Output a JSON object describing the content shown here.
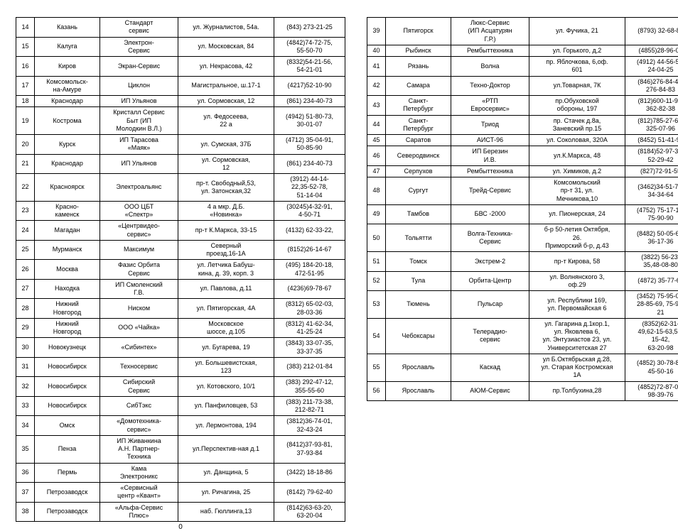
{
  "page_number": "0",
  "col_widths": {
    "c1": "26px",
    "c2": "92px",
    "c3": "110px",
    "c4": "135px",
    "c5": "100px"
  },
  "left": [
    {
      "n": "14",
      "city": "Казань",
      "org": "Стандарт\nсервис",
      "addr": "ул. Журналистов, 54а.",
      "tel": "(843) 273-21-25"
    },
    {
      "n": "15",
      "city": "Калуга",
      "org": "Электрон-\nСервис",
      "addr": "ул. Московская, 84",
      "tel": "(4842)74-72-75,\n55-50-70"
    },
    {
      "n": "16",
      "city": "Киров",
      "org": "Экран-Сервис",
      "addr": "ул. Некрасова, 42",
      "tel": "(8332)54-21-56,\n54-21-01"
    },
    {
      "n": "17",
      "city": "Комсомольск-\nна-Амуре",
      "org": "Циклон",
      "addr": "Магистральное, ш.17-1",
      "tel": "(4217)52-10-90"
    },
    {
      "n": "18",
      "city": "Краснодар",
      "org": "ИП Ульянов",
      "addr": "ул. Сормовская, 12",
      "tel": "(861) 234-40-73"
    },
    {
      "n": "19",
      "city": "Кострома",
      "org": "Кристалл Сервис\nБыт (ИП\nМолодкин В.Л.)",
      "addr": "ул. Федосеева,\n22 а",
      "tel": "(4942) 51-80-73,\n30-01-07"
    },
    {
      "n": "20",
      "city": "Курск",
      "org": "ИП Тарасова\n«Маяк»",
      "addr": "ул. Сумская, 37Б",
      "tel": "(4712) 35-04-91,\n50-85-90"
    },
    {
      "n": "21",
      "city": "Краснодар",
      "org": "ИП Ульянов",
      "addr": "ул. Сормовская,\n12",
      "tel": "(861) 234-40-73"
    },
    {
      "n": "22",
      "city": "Красноярск",
      "org": "Электроальянс",
      "addr": "пр-т. Свободный,53,\nул. Затонская,32",
      "tel": "(3912) 44-14-\n22,35-52-78,\n51-14-04"
    },
    {
      "n": "23",
      "city": "Красно-\nкаменск",
      "org": "ООО ЦБТ\n«Спектр»",
      "addr": "4 а мкр. Д.Б.\n«Новинка»",
      "tel": "(30245)4-32-91,\n4-50-71"
    },
    {
      "n": "24",
      "city": "Магадан",
      "org": "«Центрвидео-\nсервис»",
      "addr": "пр-т К.Маркса, 33-15",
      "tel": "(4132) 62-33-22,"
    },
    {
      "n": "25",
      "city": "Мурманск",
      "org": "Максимум",
      "addr": "Северный\nпроезд,16-1А",
      "tel": "(8152)26-14-67"
    },
    {
      "n": "26",
      "city": "Москва",
      "org": "Фазис Орбита\nСервис",
      "addr": "ул. Летчика Бабуш-\nкина, д. 39, корп. 3",
      "tel": "(495) 184-20-18,\n472-51-95"
    },
    {
      "n": "27",
      "city": "Находка",
      "org": "ИП Смоленский\nГ.В.",
      "addr": "ул. Павлова, д.11",
      "tel": "(4236)69-78-67"
    },
    {
      "n": "28",
      "city": "Нижний\nНовгород",
      "org": "Ниском",
      "addr": "ул. Пятигорская, 4А",
      "tel": "(8312) 65-02-03,\n28-03-36"
    },
    {
      "n": "29",
      "city": "Нижний\nНовгород",
      "org": "ООО «Чайка»",
      "addr": "Московское\nшоссе, д.105",
      "tel": "(8312) 41-62-34,\n41-25-24"
    },
    {
      "n": "30",
      "city": "Новокузнецк",
      "org": "«Сибинтех»",
      "addr": "ул. Бугарева, 19",
      "tel": "(3843) 33-07-35,\n33-37-35"
    },
    {
      "n": "31",
      "city": "Новосибирск",
      "org": "Техносервис",
      "addr": "ул. Большевистская,\n123",
      "tel": "(383) 212-01-84"
    },
    {
      "n": "32",
      "city": "Новосибирск",
      "org": "Сибирский\nСервис",
      "addr": "ул. Котовского, 10/1",
      "tel": "(383) 292-47-12,\n355-55-60"
    },
    {
      "n": "33",
      "city": "Новосибирск",
      "org": "СибТэкс",
      "addr": "ул. Панфиловцев, 53",
      "tel": "(383) 211-73-38,\n212-82-71"
    },
    {
      "n": "34",
      "city": "Омск",
      "org": "«Домотехника-\nсервис»",
      "addr": "ул. Лермонтова, 194",
      "tel": "(3812)36-74-01,\n32-43-24"
    },
    {
      "n": "35",
      "city": "Пенза",
      "org": "ИП Живанкина\nА.Н. Партнер-\nТехника",
      "addr": "ул.Перспектив-ная д.1",
      "tel": "(8412)37-93-81,\n37-93-84"
    },
    {
      "n": "36",
      "city": "Пермь",
      "org": "Кама\nЭлектроникс",
      "addr": "ул. Данщина, 5",
      "tel": "(3422) 18-18-86"
    },
    {
      "n": "37",
      "city": "Петрозаводск",
      "org": "«Сервисный\nцентр «Квант»",
      "addr": "ул. Ричагина, 25",
      "tel": "(8142) 79-62-40"
    },
    {
      "n": "38",
      "city": "Петрозаводск",
      "org": "«Альфа-Сервис\nПлюс»",
      "addr": "наб. Гюллинга,13",
      "tel": "(8142)63-63-20,\n63-20-04"
    }
  ],
  "right": [
    {
      "n": "39",
      "city": "Пятигорск",
      "org": "Люкс-Сервис\n(ИП Асцатурян\nГ.Р.)",
      "addr": "ул. Фучика, 21",
      "tel": "(8793) 32-68-80"
    },
    {
      "n": "40",
      "city": "Рыбинск",
      "org": "Рембыттехника",
      "addr": "ул. Горького, д,2",
      "tel": "(4855)28-96-08"
    },
    {
      "n": "41",
      "city": "Рязань",
      "org": "Волна",
      "addr": "пр. Яблочкова, 6,оф.\n601",
      "tel": "(4912) 44-56-51,\n24-04-25"
    },
    {
      "n": "42",
      "city": "Самара",
      "org": "Техно-Доктор",
      "addr": "ул.Товарная, 7К",
      "tel": "(846)276-84-48,\n276-84-83"
    },
    {
      "n": "43",
      "city": "Санкт-\nПетербург",
      "org": "«РТП\nЕвросервис»",
      "addr": "пр.Обуховской\nобороны, 197",
      "tel": "(812)600-11-97,\n362-82-38"
    },
    {
      "n": "44",
      "city": "Санкт-\nПетербург",
      "org": "Триод",
      "addr": "пр. Стачек д.8а,\nЗаневский пр.15",
      "tel": "(812)785-27-65,\n325-07-96"
    },
    {
      "n": "45",
      "city": "Саратов",
      "org": "АИСТ-96",
      "addr": "ул. Соколовая, 320А",
      "tel": "(8452) 51-41-99"
    },
    {
      "n": "46",
      "city": "Северодвинск",
      "org": "ИП Березин\nИ.В.",
      "addr": "ул.К.Маркса, 48",
      "tel": "(8184)52-97-30,\n52-29-42"
    },
    {
      "n": "47",
      "city": "Серпухов",
      "org": "Рембыттехника",
      "addr": "ул. Химиков, д.2",
      "tel": "(827)72-91-55"
    },
    {
      "n": "48",
      "city": "Сургут",
      "org": "Трейд-Сервис",
      "addr": "Комсомольский\nпр-т 31, ул.\nМечникова,10",
      "tel": "(3462)34-51-71,\n34-34-64"
    },
    {
      "n": "49",
      "city": "Тамбов",
      "org": "БВС -2000",
      "addr": "ул. Пионерская, 24",
      "tel": "(4752) 75-17-18,\n75-90-90"
    },
    {
      "n": "50",
      "city": "Тольятти",
      "org": "Волга-Техника-\nСервис",
      "addr": "б-р 50-летия Октября,\n26.\nПриморский б-р, д.43",
      "tel": "(8482) 50-05-67,\n36-17-36"
    },
    {
      "n": "51",
      "city": "Томск",
      "org": "Экстрем-2",
      "addr": "пр-т Кирова, 58",
      "tel": "(3822) 56-23-\n35,48-08-80"
    },
    {
      "n": "52",
      "city": "Тула",
      "org": "Орбита-Центр",
      "addr": "ул. Волнянского 3,\nоф.29",
      "tel": "(4872) 35-77-68"
    },
    {
      "n": "53",
      "city": "Тюмень",
      "org": "Пульсар",
      "addr": "ул. Республики 169,\nул. Первомайская 6",
      "tel": "(3452) 75-95-08,\n28-85-69, 75-90-\n21"
    },
    {
      "n": "54",
      "city": "Чебоксары",
      "org": "Телерадио-\nсервис",
      "addr": "ул. Гагарина д.1кор.1,\nул. Яковлева 6,\nул. Энтузиастов 23, ул.\nУниверситетская 27",
      "tel": "(8352)62-31-\n49,62-15-63,55-\n15-42,\n63-20-98"
    },
    {
      "n": "55",
      "city": "Ярославль",
      "org": "Каскад",
      "addr": "ул Б.Октябрьская д.28,\nул. Старая Костромская\n1А",
      "tel": "(4852) 30-78-87,\n45-50-16"
    },
    {
      "n": "56",
      "city": "Ярославль",
      "org": "АЮМ-Сервис",
      "addr": "пр.Толбухина,28",
      "tel": "(4852)72-87-00,\n98-39-76"
    }
  ]
}
